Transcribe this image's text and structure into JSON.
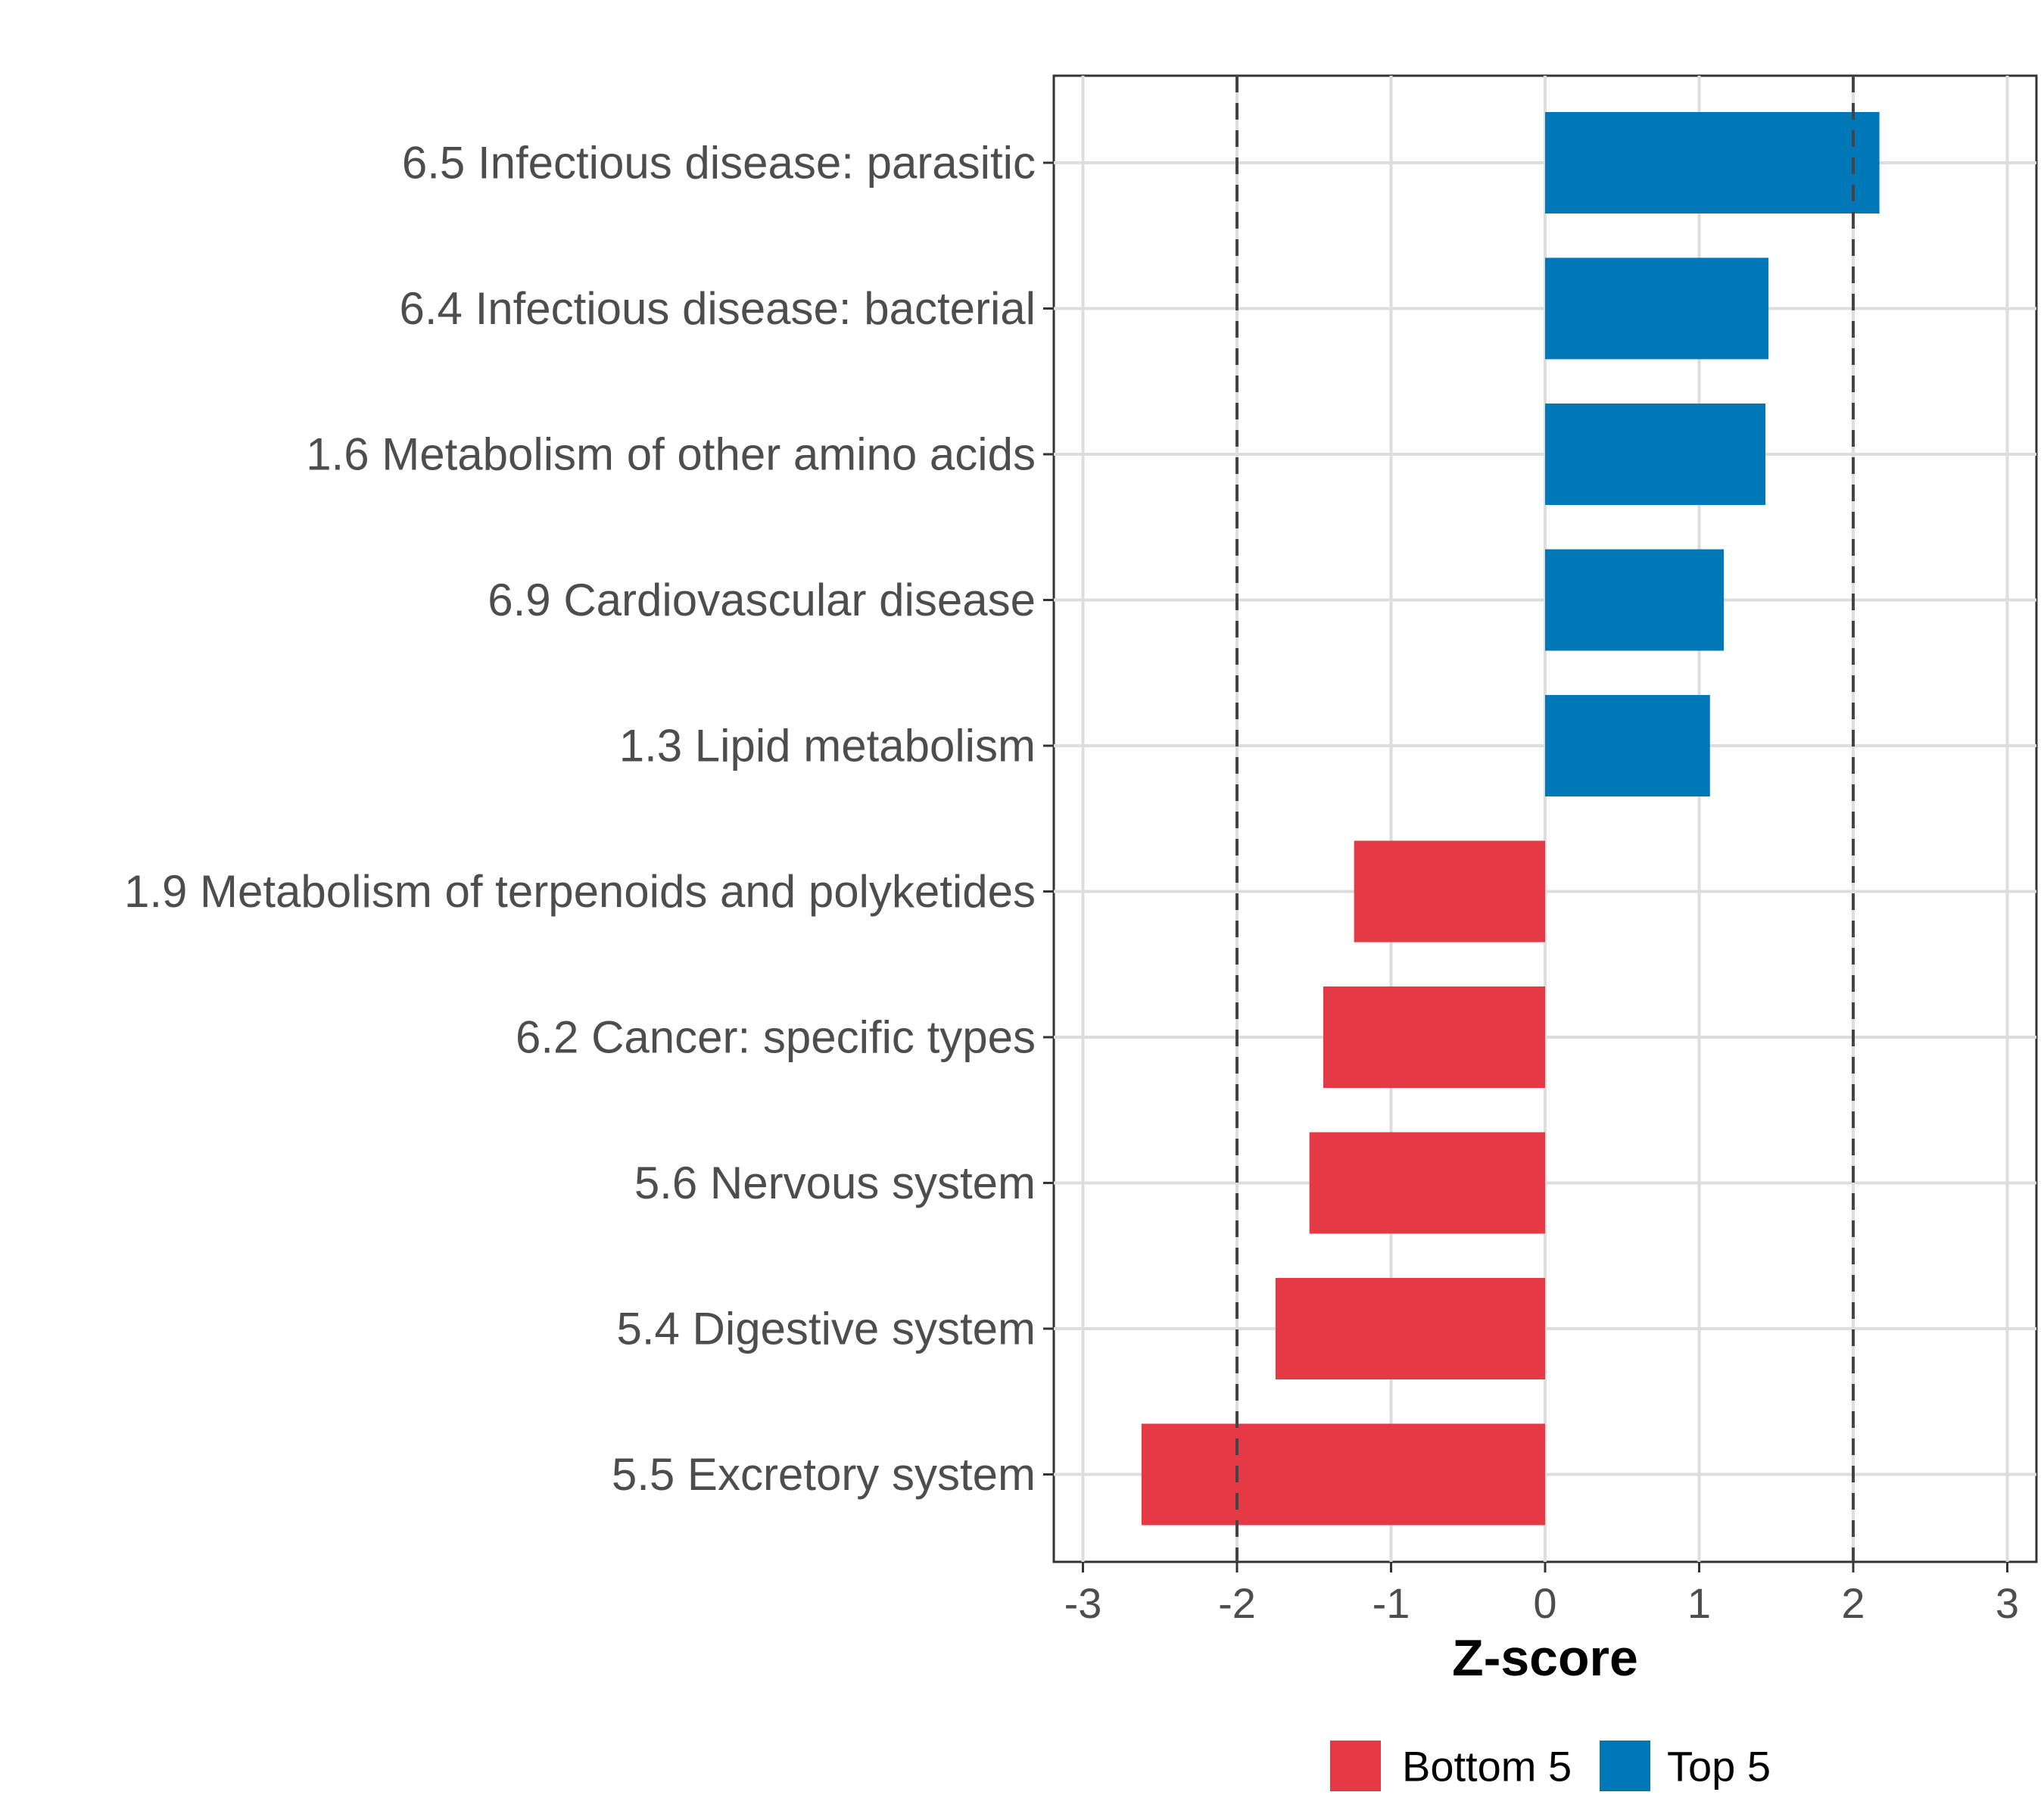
{
  "chart_data": {
    "type": "bar",
    "orientation": "horizontal",
    "categories": [
      "6.5 Infectious disease: parasitic",
      "6.4 Infectious disease: bacterial",
      "1.6 Metabolism of other amino acids",
      "6.9 Cardiovascular disease",
      "1.3 Lipid metabolism",
      "1.9 Metabolism of terpenoids and polyketides",
      "6.2 Cancer: specific types",
      "5.6 Nervous system",
      "5.4 Digestive system",
      "5.5 Excretory system"
    ],
    "values": [
      2.17,
      1.45,
      1.43,
      1.16,
      1.07,
      -1.24,
      -1.44,
      -1.53,
      -1.75,
      -2.62
    ],
    "groups": [
      "Top 5",
      "Top 5",
      "Top 5",
      "Top 5",
      "Top 5",
      "Bottom 5",
      "Bottom 5",
      "Bottom 5",
      "Bottom 5",
      "Bottom 5"
    ],
    "xlabel": "Z-score",
    "ylabel": "",
    "xlim": [
      -3.2,
      3.2
    ],
    "xticks": [
      -3,
      -2,
      -1,
      0,
      1,
      2,
      3
    ],
    "xtick_labels": [
      "-3",
      "-2",
      "-1",
      "0",
      "1",
      "2",
      "3"
    ],
    "reference_lines": [
      -2,
      2
    ],
    "grid": true,
    "legend": {
      "position": "bottom",
      "entries": [
        {
          "name": "Bottom 5",
          "color": "#e63946"
        },
        {
          "name": "Top 5",
          "color": "#0077b6"
        }
      ]
    }
  }
}
